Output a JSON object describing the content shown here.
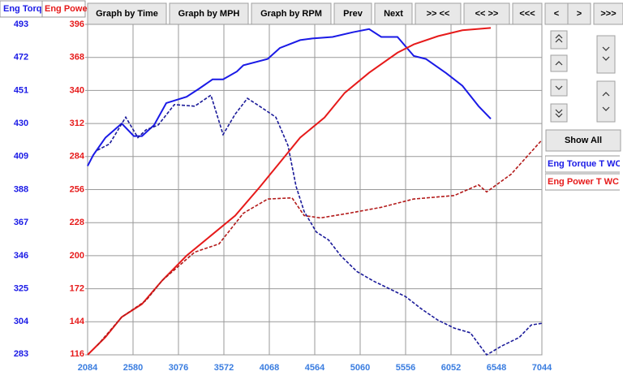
{
  "toolbar": {
    "buttons": [
      "Graph by Time",
      "Graph by MPH",
      "Graph by RPM",
      "Prev",
      "Next",
      ">> <<",
      "<< >>",
      "<<<",
      "<",
      ">",
      ">>>"
    ]
  },
  "side_panel": {
    "show_all": "Show All"
  },
  "chart_data": {
    "type": "line",
    "y_label": "Eng Torq",
    "y2_label": "Eng Powe",
    "xlim": [
      2084,
      7044
    ],
    "xticks": [
      2084,
      2580,
      3076,
      3572,
      4068,
      4564,
      5060,
      5556,
      6052,
      6548,
      7044
    ],
    "ylim": [
      283,
      493
    ],
    "yticks": [
      283,
      304,
      325,
      346,
      367,
      388,
      409,
      430,
      451,
      472,
      493
    ],
    "y2lim": [
      116,
      396
    ],
    "y2ticks": [
      116,
      144,
      172,
      200,
      228,
      256,
      284,
      312,
      340,
      368,
      396
    ],
    "grid": true,
    "series": [
      {
        "name": "Eng Torque T WC",
        "color": "#1a1ae6",
        "dash": false,
        "x": [
          2084,
          2146,
          2279,
          2456,
          2589,
          2677,
          2810,
          2943,
          3165,
          3297,
          3448,
          3563,
          3714,
          3785,
          4050,
          4183,
          4405,
          4537,
          4759,
          4980,
          5157,
          5290,
          5467,
          5645,
          5777,
          5999,
          6176,
          6353,
          6486
        ],
        "values": [
          403,
          410,
          421,
          430,
          422,
          422,
          429,
          443,
          447,
          452,
          458,
          458,
          463,
          467,
          471,
          478,
          483,
          484,
          485,
          488,
          490,
          485,
          485,
          473,
          471,
          462,
          454,
          441,
          433
        ]
      },
      {
        "color": "#1a1a99",
        "dash": true,
        "x": [
          2190,
          2323,
          2500,
          2633,
          2722,
          2855,
          3032,
          3253,
          3430,
          3563,
          3696,
          3829,
          3962,
          4139,
          4272,
          4360,
          4449,
          4582,
          4715,
          4847,
          5024,
          5201,
          5379,
          5556,
          5733,
          5910,
          6087,
          6264,
          6441,
          6618,
          6795,
          6928,
          7044
        ],
        "values": [
          413,
          417,
          434,
          421,
          426,
          429,
          442,
          441,
          448,
          423,
          436,
          446,
          441,
          434,
          416,
          390,
          374,
          361,
          356,
          346,
          336,
          330,
          325,
          320,
          312,
          305,
          300,
          297,
          283,
          289,
          294,
          302,
          303
        ]
      },
      {
        "name": "Eng Power T WC",
        "color": "#e61a1a",
        "dash": false,
        "axis": "y2",
        "x": [
          2084,
          2279,
          2456,
          2677,
          2899,
          3165,
          3430,
          3696,
          3962,
          4183,
          4405,
          4670,
          4892,
          5157,
          5467,
          5645,
          5910,
          6176,
          6486
        ],
        "values": [
          116,
          131,
          148,
          159,
          179,
          200,
          217,
          234,
          258,
          279,
          300,
          317,
          338,
          355,
          372,
          379,
          386,
          391,
          393
        ]
      },
      {
        "color": "#b31a1a",
        "dash": true,
        "axis": "y2",
        "x": [
          2190,
          2456,
          2722,
          2899,
          3253,
          3519,
          3785,
          4050,
          4316,
          4449,
          4626,
          4936,
          5290,
          5645,
          6087,
          6353,
          6441,
          6707,
          7044
        ],
        "values": [
          124,
          148,
          162,
          179,
          203,
          210,
          236,
          248,
          249,
          234,
          232,
          236,
          241,
          248,
          251,
          260,
          254,
          269,
          298
        ]
      }
    ]
  }
}
